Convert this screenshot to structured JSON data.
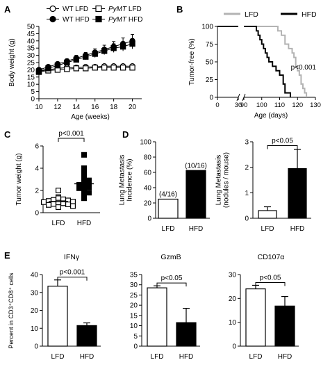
{
  "panel_labels": [
    "A",
    "B",
    "C",
    "D",
    "E"
  ],
  "chart_data": [
    {
      "id": "A",
      "type": "line",
      "xlabel": "Age (weeks)",
      "ylabel": "Body weight (g)",
      "xlim": [
        10,
        21
      ],
      "ylim": [
        0,
        50
      ],
      "xticks": [
        "10",
        "12",
        "14",
        "16",
        "18",
        "20"
      ],
      "yticks": [
        "0",
        "5",
        "10",
        "15",
        "20",
        "25",
        "30",
        "35",
        "40",
        "45",
        "50"
      ],
      "x": [
        10,
        11,
        12,
        13,
        14,
        15,
        16,
        17,
        18,
        19,
        20
      ],
      "series": [
        {
          "name": "WT LFD",
          "marker": "circle-open",
          "values": [
            19,
            20,
            21,
            21.5,
            21.5,
            22,
            22,
            22.5,
            22.5,
            22.5,
            22.5
          ]
        },
        {
          "name": "WT HFD",
          "marker": "circle-filled",
          "values": [
            20,
            22,
            24,
            26,
            28,
            30,
            32,
            34,
            36,
            38,
            40
          ],
          "error": [
            1,
            1,
            1.5,
            1.5,
            2,
            2,
            2.5,
            3,
            3.5,
            4,
            4.5
          ]
        },
        {
          "name": "PyMT LFD",
          "marker": "square-open",
          "values": [
            18.5,
            19.5,
            20,
            20.5,
            21,
            21,
            21.5,
            21.5,
            21.5,
            21.5,
            21.5
          ]
        },
        {
          "name": "PyMT HFD",
          "marker": "square-filled",
          "values": [
            19,
            21,
            23,
            25,
            27,
            29,
            31,
            33,
            35,
            36,
            38
          ],
          "error": [
            1,
            1,
            1.5,
            1.5,
            2,
            2,
            2.5,
            2.5,
            3,
            3,
            3.5
          ]
        }
      ],
      "legend_rows": [
        [
          {
            "prefix": "WT",
            "suffix": "LFD",
            "series": 0
          },
          {
            "prefix": "PyMT",
            "suffix": "LFD",
            "series": 2
          }
        ],
        [
          {
            "prefix": "WT",
            "suffix": "HFD",
            "series": 1
          },
          {
            "prefix": "PyMT",
            "suffix": "HFD",
            "series": 3
          }
        ]
      ],
      "legend_position": "top"
    },
    {
      "id": "B",
      "type": "line",
      "subtype": "kaplan-meier",
      "xlabel": "Age (days)",
      "ylabel": "Tumor-free (%)",
      "xlim": [
        0,
        130
      ],
      "ylim": [
        0,
        100
      ],
      "axis_break": [
        30,
        90
      ],
      "xticks": [
        "0",
        "30",
        "90",
        "100",
        "110",
        "120",
        "130"
      ],
      "yticks": [
        "0",
        "25",
        "50",
        "75",
        "100"
      ],
      "annotation": "p<0.001",
      "legend_position": "top",
      "series": [
        {
          "name": "LFD",
          "color": "#b3b3b3",
          "x": [
            0,
            107,
            109,
            111,
            113,
            115,
            117,
            118,
            119,
            120,
            121,
            122,
            123,
            124,
            125
          ],
          "values": [
            100,
            100,
            93.75,
            87.5,
            75,
            68.75,
            62.5,
            56.25,
            43.75,
            37.5,
            31.25,
            18.75,
            12.5,
            6.25,
            0
          ]
        },
        {
          "name": "HFD",
          "color": "#000000",
          "x": [
            0,
            96,
            97,
            98,
            99,
            100,
            101,
            102,
            103,
            104,
            106,
            108,
            110,
            112,
            113,
            116
          ],
          "values": [
            100,
            100,
            93.75,
            87.5,
            81.25,
            75,
            68.75,
            62.5,
            56.25,
            50,
            43.75,
            37.5,
            31.25,
            18.75,
            6.25,
            0
          ]
        }
      ]
    },
    {
      "id": "C",
      "type": "scatter",
      "ylabel": "Tumor weight (g)",
      "categories": [
        "LFD",
        "HFD"
      ],
      "ylim": [
        0,
        6
      ],
      "yticks": [
        "0",
        "2",
        "4",
        "6"
      ],
      "annotation": "p<0.001",
      "series": [
        {
          "name": "LFD",
          "marker": "square-open",
          "mean": 1.0,
          "values": [
            2.0,
            1.4,
            1.3,
            1.2,
            1.15,
            1.1,
            1.05,
            1.0,
            0.95,
            0.9,
            0.85,
            0.8,
            0.75,
            0.7,
            0.6,
            0.5
          ]
        },
        {
          "name": "HFD",
          "marker": "square-filled",
          "mean": 2.6,
          "values": [
            5.2,
            4.0,
            3.8,
            3.5,
            3.1,
            2.9,
            2.7,
            2.6,
            2.5,
            2.4,
            2.3,
            2.2,
            2.0,
            1.8,
            1.5,
            1.3
          ]
        }
      ]
    },
    {
      "id": "D-left",
      "type": "bar",
      "ylabel": "Lung Metastasis\nIncidence (%)",
      "categories": [
        "LFD",
        "HFD"
      ],
      "values": [
        25,
        62.5
      ],
      "value_labels": [
        "(4/16)",
        "(10/16)"
      ],
      "ylim": [
        0,
        100
      ],
      "yticks": [
        "0",
        "20",
        "40",
        "60",
        "80",
        "100"
      ]
    },
    {
      "id": "D-right",
      "type": "bar",
      "ylabel": "Lung Metastasis\n(nodules / mouse)",
      "categories": [
        "LFD",
        "HFD"
      ],
      "values": [
        0.3,
        1.95
      ],
      "error": [
        0.15,
        0.75
      ],
      "ylim": [
        0,
        3
      ],
      "yticks": [
        "0",
        "1",
        "2",
        "3"
      ],
      "annotation": "p<0.05"
    },
    {
      "id": "E-IFNg",
      "type": "bar",
      "title": "IFNγ",
      "ylabel": "Percent in CD3⁺CD8⁺ cells",
      "categories": [
        "LFD",
        "HFD"
      ],
      "values": [
        33.5,
        11.5
      ],
      "error": [
        3.5,
        1.5
      ],
      "ylim": [
        0,
        40
      ],
      "yticks": [
        "0",
        "10",
        "20",
        "30",
        "40"
      ],
      "annotation": "p<0.001"
    },
    {
      "id": "E-GzmB",
      "type": "bar",
      "title": "GzmB",
      "categories": [
        "LFD",
        "HFD"
      ],
      "values": [
        28.5,
        11.5
      ],
      "error": [
        1.0,
        7.0
      ],
      "ylim": [
        0,
        35
      ],
      "yticks": [
        "0",
        "5",
        "10",
        "15",
        "20",
        "25",
        "30",
        "35"
      ],
      "annotation": "p<0.05"
    },
    {
      "id": "E-CD107a",
      "type": "bar",
      "title": "CD107α",
      "categories": [
        "LFD",
        "HFD"
      ],
      "values": [
        24,
        16.8
      ],
      "error": [
        1.5,
        4.0
      ],
      "ylim": [
        0,
        30
      ],
      "yticks": [
        "0",
        "10",
        "20",
        "30"
      ],
      "annotation": "p<0.05"
    }
  ]
}
